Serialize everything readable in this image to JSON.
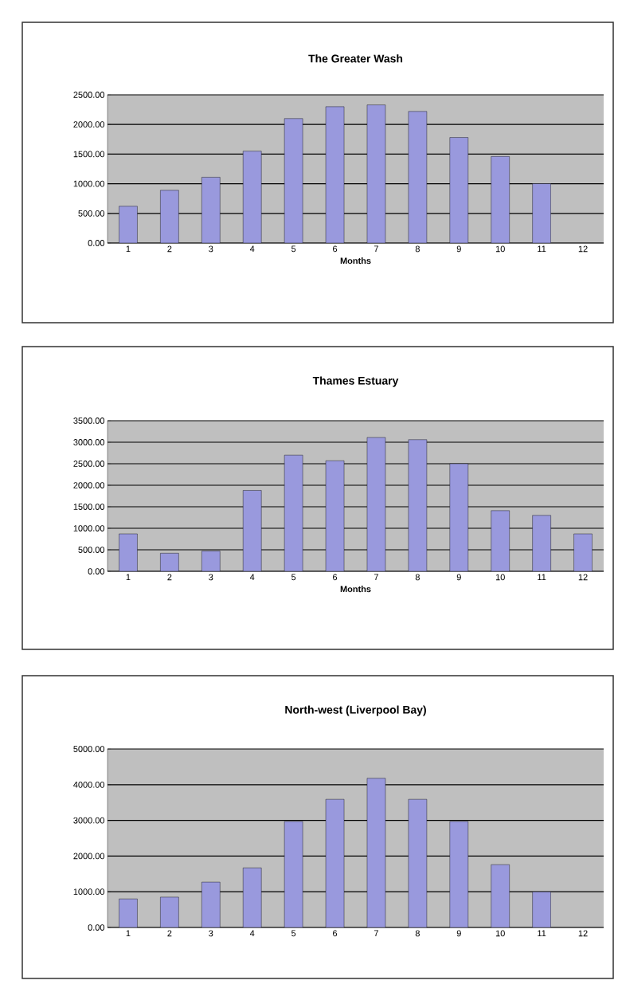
{
  "chart_data": [
    {
      "type": "bar",
      "title": "The Greater Wash",
      "xlabel": "Months",
      "categories": [
        "1",
        "2",
        "3",
        "4",
        "5",
        "6",
        "7",
        "8",
        "9",
        "10",
        "11",
        "12"
      ],
      "values": [
        620,
        890,
        1110,
        1550,
        2100,
        2300,
        2330,
        2220,
        1780,
        1460,
        1000,
        null
      ],
      "color": "#9999dd",
      "ylim": [
        0,
        2500
      ],
      "yticks": [
        {
          "value": 0,
          "label": "0.00"
        },
        {
          "value": 500,
          "label": "500.00"
        },
        {
          "value": 1000,
          "label": "1000.00"
        },
        {
          "value": 1500,
          "label": "1500.00"
        },
        {
          "value": 2000,
          "label": "2000.00"
        },
        {
          "value": 2500,
          "label": "2500.00"
        }
      ],
      "grid": "y"
    },
    {
      "type": "bar",
      "title": "Thames Estuary",
      "xlabel": "Months",
      "categories": [
        "1",
        "2",
        "3",
        "4",
        "5",
        "6",
        "7",
        "8",
        "9",
        "10",
        "11",
        "12"
      ],
      "values": [
        870,
        420,
        470,
        1880,
        2700,
        2570,
        3110,
        3060,
        2500,
        1410,
        1300,
        870
      ],
      "color": "#9999dd",
      "ylim": [
        0,
        3500
      ],
      "yticks": [
        {
          "value": 0,
          "label": "0.00"
        },
        {
          "value": 500,
          "label": "500.00"
        },
        {
          "value": 1000,
          "label": "1000.00"
        },
        {
          "value": 1500,
          "label": "1500.00"
        },
        {
          "value": 2000,
          "label": "2000.00"
        },
        {
          "value": 2500,
          "label": "2500.00"
        },
        {
          "value": 3000,
          "label": "3000.00"
        },
        {
          "value": 3500,
          "label": "3500.00"
        }
      ],
      "grid": "y"
    },
    {
      "type": "bar",
      "title": "North-west (Liverpool Bay)",
      "categories": [
        "1",
        "2",
        "3",
        "4",
        "5",
        "6",
        "7",
        "8",
        "9",
        "10",
        "11",
        "12"
      ],
      "values": [
        800,
        850,
        1270,
        1670,
        2970,
        3590,
        4180,
        3590,
        2970,
        1760,
        1000,
        null
      ],
      "color": "#9999dd",
      "ylim": [
        0,
        5000
      ],
      "yticks": [
        {
          "value": 0,
          "label": "0.00"
        },
        {
          "value": 1000,
          "label": "1000.00"
        },
        {
          "value": 2000,
          "label": "2000.00"
        },
        {
          "value": 3000,
          "label": "3000.00"
        },
        {
          "value": 4000,
          "label": "4000.00"
        },
        {
          "value": 5000,
          "label": "5000.00"
        }
      ],
      "grid": "y"
    }
  ]
}
